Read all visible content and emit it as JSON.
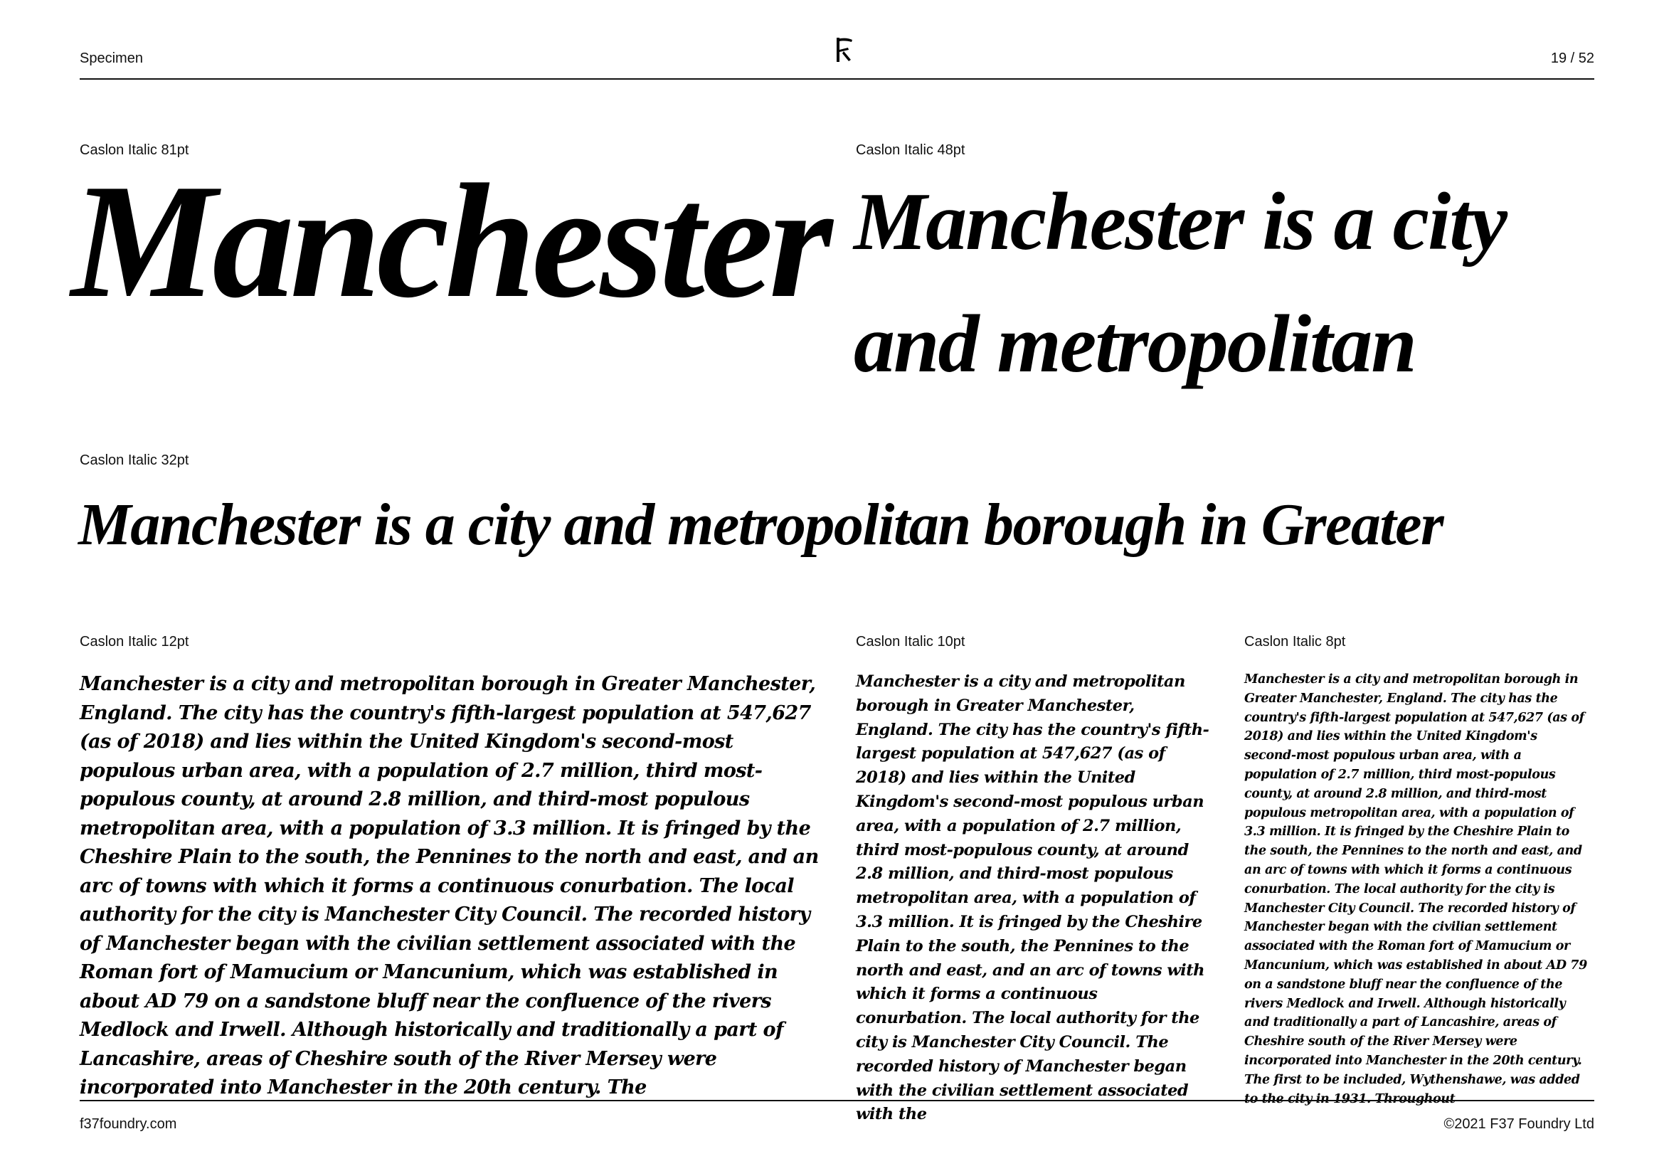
{
  "header": {
    "section_label": "Specimen",
    "logo_glyph": "F",
    "logo_icon": "f37-logo-icon",
    "page_indicator": "19 / 52"
  },
  "samples": [
    {
      "label": "Caslon Italic 81pt",
      "text": "Manchester"
    },
    {
      "label": "Caslon Italic 48pt",
      "text": "Manchester is a city and metropolitan"
    },
    {
      "label": "Caslon Italic 32pt",
      "text": "Manchester is a city and metropolitan borough in Greater"
    },
    {
      "label": "Caslon Italic 12pt",
      "text": "Manchester is a city and metropolitan borough in Greater Manchester, England. The city has the country's fifth-largest population at 547,627 (as of 2018) and lies within the United Kingdom's second-most populous urban area, with a population of 2.7 million, third most-populous county, at around 2.8 million, and third-most populous metropolitan area, with a population of 3.3 million. It is fringed by the Cheshire Plain to the south, the Pennines to the north and east, and an arc of towns with which it forms a continuous conurbation. The local authority for the city is Manchester City Council. The recorded history of Manchester began with the civilian settlement associated with the Roman fort of Mamucium or Mancunium, which was established in about AD 79 on a sandstone bluff near the confluence of the rivers Medlock and Irwell. Although historically and traditionally a part of Lancashire, areas of Cheshire south of the River Mersey were incorporated into Manchester in the 20th century. The"
    },
    {
      "label": "Caslon Italic 10pt",
      "text": "Manchester is a city and metropolitan borough in Greater Manchester, England. The city has the country's fifth-largest population at 547,627 (as of 2018) and lies within the United Kingdom's second-most populous urban area, with a population of 2.7 million, third most-populous county, at around 2.8 million, and third-most populous metropolitan area, with a population of 3.3 million. It is fringed by the Cheshire Plain to the south, the Pennines to the north and east, and an arc of towns with which it forms a continuous conurbation. The local authority for the city is Manchester City Council. The recorded history of Manchester began with the civilian settlement associated with the"
    },
    {
      "label": "Caslon Italic 8pt",
      "text": "Manchester is a city and metropolitan borough in Greater Manchester, England. The city has the country's fifth-largest population at 547,627 (as of 2018) and lies within the United Kingdom's second-most populous urban area, with a population of 2.7 million, third most-populous county, at around 2.8 million, and third-most populous metropolitan area, with a population of 3.3 million. It is fringed by the Cheshire Plain to the south, the Pennines to the north and east, and an arc of towns with which it forms a continuous conurbation. The local authority for the city is Manchester City Council. The recorded history of Manchester began with the civilian settlement associated with the Roman fort of Mamucium or Mancunium, which was established in about AD 79 on a sandstone bluff near the confluence of the rivers Medlock and Irwell. Although historically and traditionally a part of Lancashire, areas of Cheshire south of the River Mersey were incorporated into Manchester in the 20th century. The first to be included, Wythenshawe, was added to the city in 1931. Throughout"
    }
  ],
  "footer": {
    "website": "f37foundry.com",
    "copyright": "©2021 F37 Foundry Ltd"
  }
}
